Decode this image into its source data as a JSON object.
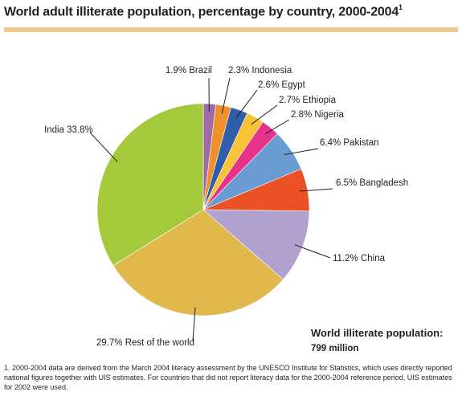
{
  "title": {
    "text": "World adult illiterate population, percentage by country, 2000-2004",
    "superscript": "1"
  },
  "total": {
    "label": "World illiterate population:",
    "value": "799 million"
  },
  "footnote": "1. 2000-2004 data are derived from the March 2004 literacy assessment by the UNESCO Institute for Statistics, which uses directly reported national figures together with UIS estimates. For countries that did not report literacy data for the 2000-2004 reference period, UIS estimates for 2002 were used.",
  "chart_data": {
    "type": "pie",
    "start": "12 o'clock, clockwise",
    "slices": [
      {
        "name": "Brazil",
        "value": 1.9,
        "label": "1.9% Brazil",
        "color": "#9e6aa8"
      },
      {
        "name": "Indonesia",
        "value": 2.3,
        "label": "2.3% Indonesia",
        "color": "#f0902a"
      },
      {
        "name": "Egypt",
        "value": 2.6,
        "label": "2.6% Egypt",
        "color": "#2f5da8"
      },
      {
        "name": "Ethiopia",
        "value": 2.7,
        "label": "2.7% Ethiopia",
        "color": "#f8c336"
      },
      {
        "name": "Nigeria",
        "value": 2.8,
        "label": "2.8% Nigeria",
        "color": "#e8318a"
      },
      {
        "name": "Pakistan",
        "value": 6.4,
        "label": "6.4% Pakistan",
        "color": "#6a9bd3"
      },
      {
        "name": "Bangladesh",
        "value": 6.5,
        "label": "6.5% Bangladesh",
        "color": "#ea5124"
      },
      {
        "name": "China",
        "value": 11.2,
        "label": "11.2% China",
        "color": "#b1a1cf"
      },
      {
        "name": "Rest of the world",
        "value": 29.7,
        "label": "29.7% Rest of the world",
        "color": "#e0b84c"
      },
      {
        "name": "India",
        "value": 33.8,
        "label": "India 33.8%",
        "color": "#a4c93b"
      }
    ]
  }
}
